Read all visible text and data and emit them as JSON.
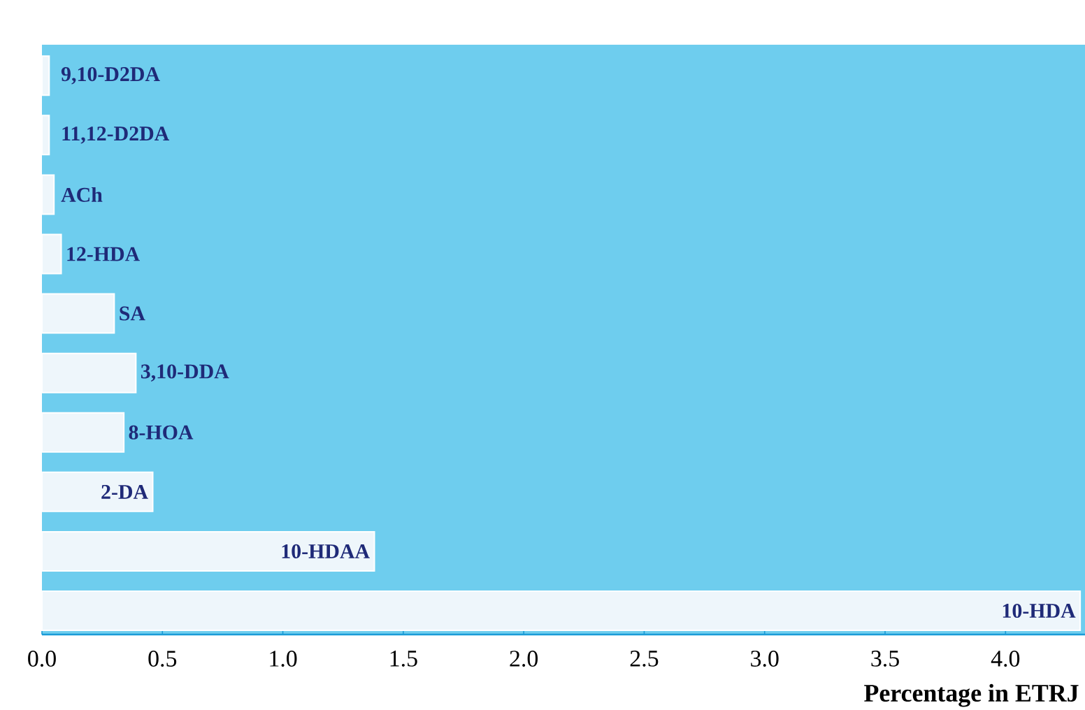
{
  "chart_data": {
    "type": "bar",
    "orientation": "horizontal",
    "xlabel": "Percentage in ETRJ",
    "categories": [
      "9,10-D2DA",
      "11,12-D2DA",
      "ACh",
      "12-HDA",
      "SA",
      "3,10-DDA",
      "8-HOA",
      "2-DA",
      "10-HDAA",
      "10-HDA"
    ],
    "values": [
      0.03,
      0.03,
      0.05,
      0.08,
      0.3,
      0.39,
      0.34,
      0.46,
      1.38,
      4.31
    ],
    "color": "#eef6fb",
    "xlim": [
      0,
      4.33
    ],
    "xticks": [
      {
        "value": 0,
        "label": "0.0"
      },
      {
        "value": 0.5,
        "label": "0.5"
      },
      {
        "value": 1,
        "label": "1.0"
      },
      {
        "value": 1.5,
        "label": "1.5"
      },
      {
        "value": 2,
        "label": "2.0"
      },
      {
        "value": 2.5,
        "label": "2.5"
      },
      {
        "value": 3,
        "label": "3.0"
      },
      {
        "value": 3.5,
        "label": "3.5"
      },
      {
        "value": 4,
        "label": "4.0"
      }
    ],
    "grid": false
  }
}
